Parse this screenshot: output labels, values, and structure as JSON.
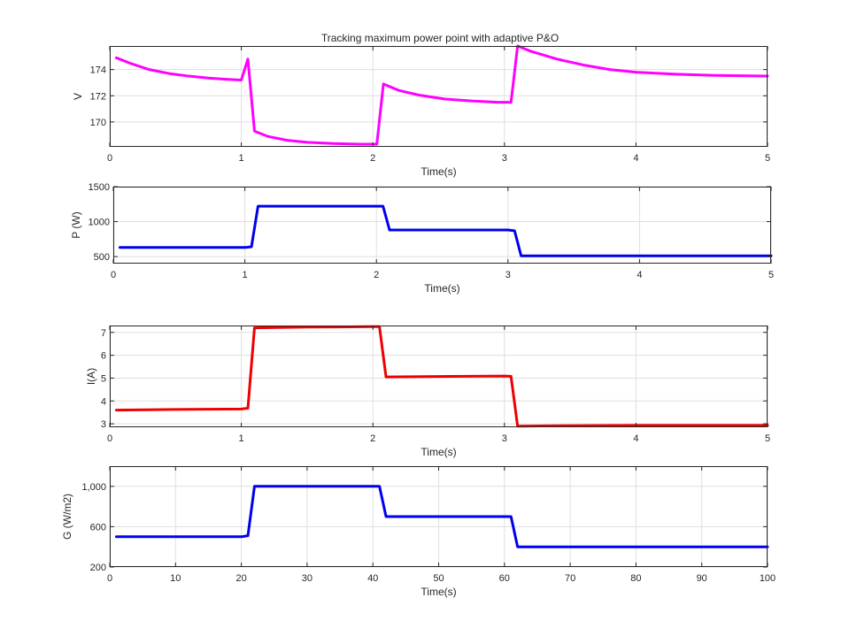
{
  "chart_data": [
    {
      "type": "line",
      "title": "Tracking maximum power point with adaptive P&O",
      "xlabel": "Time(s)",
      "ylabel": "V",
      "xlim": [
        0,
        5
      ],
      "ylim": [
        168.1,
        175.8
      ],
      "xticks": [
        0,
        1,
        2,
        3,
        4,
        5
      ],
      "yticks": [
        170,
        172,
        174
      ],
      "ytick_labels": [
        "170",
        "172",
        "174"
      ],
      "grid": true,
      "color": "#ff00ff",
      "series": [
        {
          "color": "#ff00ff",
          "x": [
            0.05,
            0.15,
            0.3,
            0.45,
            0.6,
            0.75,
            0.9,
            1.0,
            1.05,
            1.1,
            1.2,
            1.35,
            1.5,
            1.7,
            1.9,
            2.03,
            2.08,
            2.2,
            2.35,
            2.55,
            2.75,
            2.95,
            3.05,
            3.1,
            3.2,
            3.4,
            3.6,
            3.8,
            4.0,
            4.3,
            4.6,
            5.0
          ],
          "y": [
            174.9,
            174.5,
            174.0,
            173.7,
            173.5,
            173.35,
            173.25,
            173.2,
            174.8,
            169.3,
            168.9,
            168.6,
            168.45,
            168.35,
            168.3,
            168.3,
            172.9,
            172.4,
            172.05,
            171.75,
            171.6,
            171.5,
            171.5,
            175.8,
            175.4,
            174.8,
            174.35,
            174.0,
            173.8,
            173.65,
            173.55,
            173.5
          ]
        }
      ]
    },
    {
      "type": "line",
      "title": "",
      "xlabel": "Time(s)",
      "ylabel": "P (W)",
      "xlim": [
        0,
        5
      ],
      "ylim": [
        400,
        1500
      ],
      "xticks": [
        0,
        1,
        2,
        3,
        4,
        5
      ],
      "yticks": [
        500,
        1000,
        1500
      ],
      "ytick_labels": [
        "500",
        "1000",
        "1500"
      ],
      "grid": true,
      "color": "#0000ee",
      "series": [
        {
          "color": "#0000ee",
          "x": [
            0.05,
            0.5,
            1.0,
            1.05,
            1.1,
            1.5,
            2.0,
            2.05,
            2.1,
            2.5,
            3.0,
            3.05,
            3.1,
            3.5,
            4.0,
            4.5,
            5.0
          ],
          "y": [
            630,
            630,
            630,
            640,
            1220,
            1220,
            1220,
            1220,
            880,
            880,
            880,
            870,
            510,
            510,
            510,
            510,
            510
          ]
        }
      ]
    },
    {
      "type": "line",
      "title": "",
      "xlabel": "Time(s)",
      "ylabel": "I(A)",
      "xlim": [
        0,
        5
      ],
      "ylim": [
        2.85,
        7.3
      ],
      "xticks": [
        0,
        1,
        2,
        3,
        4,
        5
      ],
      "yticks": [
        3,
        4,
        5,
        6,
        7
      ],
      "ytick_labels": [
        "3",
        "4",
        "5",
        "6",
        "7"
      ],
      "grid": true,
      "color": "#ee0000",
      "series": [
        {
          "color": "#ee0000",
          "x": [
            0.05,
            0.5,
            1.0,
            1.05,
            1.1,
            1.5,
            2.0,
            2.05,
            2.1,
            2.5,
            3.0,
            3.05,
            3.1,
            3.5,
            4.0,
            4.5,
            5.0
          ],
          "y": [
            3.6,
            3.63,
            3.65,
            3.68,
            7.2,
            7.23,
            7.25,
            7.25,
            5.05,
            5.07,
            5.09,
            5.08,
            2.9,
            2.92,
            2.93,
            2.93,
            2.93
          ]
        }
      ]
    },
    {
      "type": "line",
      "title": "",
      "xlabel": "Time(s)",
      "ylabel": "G (W/m2)",
      "xlim": [
        0,
        100
      ],
      "ylim": [
        200,
        1200
      ],
      "xticks": [
        0,
        10,
        20,
        30,
        40,
        50,
        60,
        70,
        80,
        90,
        100
      ],
      "yticks": [
        200,
        600,
        1000
      ],
      "ytick_labels": [
        "200",
        "600",
        "1,000"
      ],
      "grid": true,
      "color": "#0000ee",
      "series": [
        {
          "color": "#0000ee",
          "x": [
            1,
            10,
            20,
            21,
            22,
            30,
            40,
            41,
            42,
            50,
            60,
            61,
            62,
            70,
            80,
            90,
            100
          ],
          "y": [
            500,
            500,
            500,
            510,
            1000,
            1000,
            1000,
            1000,
            700,
            700,
            700,
            700,
            400,
            400,
            400,
            400,
            400
          ]
        }
      ]
    }
  ]
}
